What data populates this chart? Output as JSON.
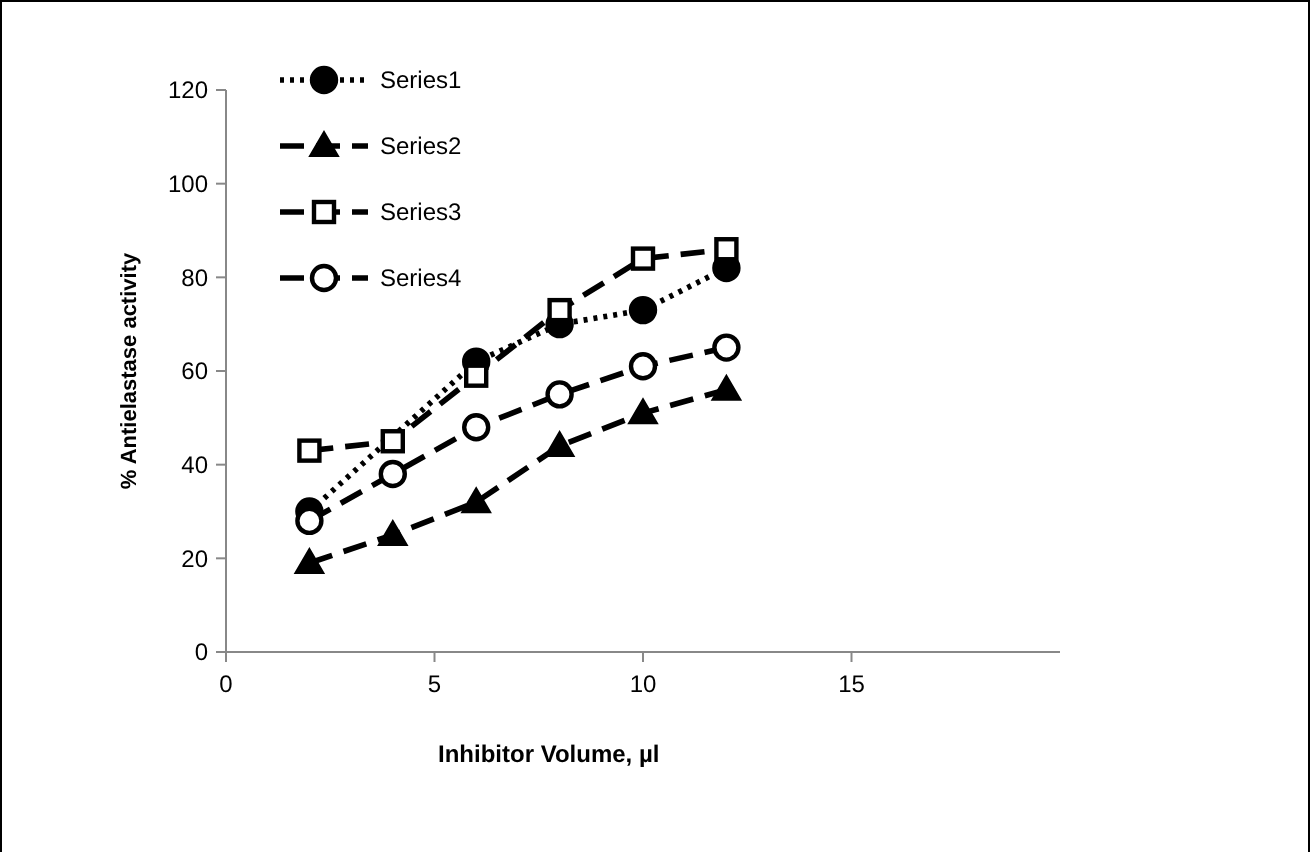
{
  "chart_data": {
    "type": "line",
    "xlabel": "Inhibitor  Volume, µl",
    "ylabel": "%  Antielastase  activity",
    "x": [
      2,
      4,
      6,
      8,
      10,
      12
    ],
    "series": [
      {
        "name": "Series1",
        "color": "#000000",
        "values": [
          30,
          null,
          62,
          70,
          73,
          82
        ],
        "marker": "circle",
        "line_style": "dotted"
      },
      {
        "name": "Series2",
        "color": "#000000",
        "values": [
          19,
          25,
          32,
          44,
          51,
          56
        ],
        "marker": "triangle",
        "line_style": "dashed"
      },
      {
        "name": "Series3",
        "color": "#000000",
        "values": [
          43,
          45,
          59,
          73,
          84,
          86
        ],
        "marker": "square",
        "line_style": "dashed"
      },
      {
        "name": "Series4",
        "color": "#000000",
        "values": [
          28,
          38,
          48,
          55,
          61,
          65
        ],
        "marker": "circle",
        "line_style": "dashed"
      }
    ],
    "xlim": [
      0,
      20
    ],
    "xticks": [
      0,
      5,
      10,
      15
    ],
    "ylim": [
      0,
      120
    ],
    "yticks": [
      0,
      20,
      40,
      60,
      80,
      100,
      120
    ],
    "grid": false,
    "legend": "top left"
  }
}
